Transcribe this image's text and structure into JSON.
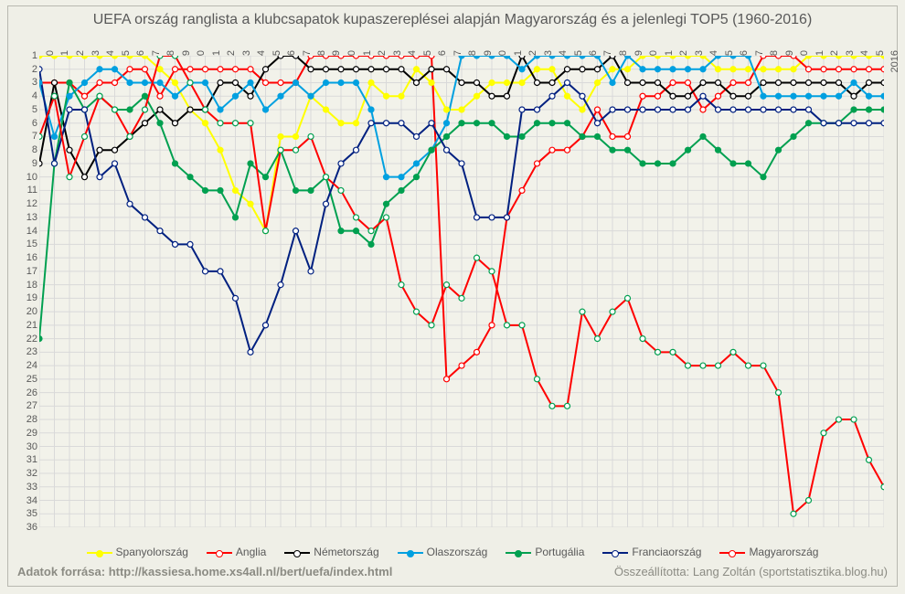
{
  "title": "UEFA ország ranglista a klubcsapatok kupaszereplései alapján Magyarország és a jelenlegi TOP5 (1960-2016)",
  "footer_left": "Adatok forrása: http://kassiesa.home.xs4all.nl/bert/uefa/index.html",
  "footer_right": "Összeállította: Lang Zoltán (sportstatisztika.blog.hu)",
  "background": "#f2f2ea",
  "outer_background": "#efefe7",
  "grid_color": "#d9d9d9",
  "title_fontsize": 16,
  "label_fontsize": 11,
  "years": [
    1960,
    1961,
    1962,
    1963,
    1964,
    1965,
    1966,
    1967,
    1968,
    1969,
    1970,
    1971,
    1972,
    1973,
    1974,
    1975,
    1976,
    1977,
    1978,
    1979,
    1980,
    1981,
    1982,
    1983,
    1984,
    1985,
    1986,
    1987,
    1988,
    1989,
    1990,
    1991,
    1992,
    1993,
    1994,
    1995,
    1996,
    1997,
    1998,
    1999,
    2000,
    2001,
    2002,
    2003,
    2004,
    2005,
    2006,
    2007,
    2008,
    2009,
    2010,
    2011,
    2012,
    2013,
    2014,
    2015,
    2016
  ],
  "ylim": [
    1,
    36
  ],
  "series": [
    {
      "id": "esp",
      "label": "Spanyolország",
      "color": "#ffff00",
      "marker_fill": "solid",
      "values": [
        1,
        1,
        1,
        1,
        1,
        1,
        1,
        1,
        2,
        3,
        5,
        6,
        8,
        11,
        12,
        14,
        7,
        7,
        4,
        5,
        6,
        6,
        3,
        4,
        4,
        2,
        3,
        5,
        5,
        4,
        3,
        3,
        3,
        2,
        2,
        4,
        5,
        3,
        2,
        2,
        1,
        1,
        1,
        1,
        1,
        2,
        2,
        2,
        2,
        2,
        2,
        1,
        1,
        1,
        1,
        1,
        1
      ]
    },
    {
      "id": "eng",
      "label": "Anglia",
      "color": "#ff0000",
      "marker_fill": "hollow",
      "values": [
        3,
        3,
        3,
        4,
        3,
        3,
        2,
        2,
        4,
        2,
        2,
        2,
        2,
        2,
        2,
        3,
        3,
        3,
        1,
        1,
        1,
        1,
        1,
        1,
        1,
        1,
        1,
        25,
        24,
        23,
        21,
        13,
        11,
        9,
        8,
        8,
        7,
        5,
        7,
        7,
        4,
        4,
        3,
        3,
        5,
        4,
        3,
        3,
        1,
        1,
        1,
        2,
        2,
        2,
        2,
        2,
        2
      ]
    },
    {
      "id": "ger",
      "label": "Németország",
      "color": "#000000",
      "marker_fill": "hollow",
      "values": [
        9,
        3,
        8,
        10,
        8,
        8,
        7,
        6,
        5,
        6,
        5,
        5,
        3,
        3,
        4,
        2,
        1,
        1,
        2,
        2,
        2,
        2,
        2,
        2,
        2,
        3,
        2,
        2,
        3,
        3,
        4,
        4,
        1,
        3,
        3,
        2,
        2,
        2,
        1,
        3,
        3,
        3,
        4,
        4,
        3,
        3,
        4,
        4,
        3,
        3,
        3,
        3,
        3,
        3,
        4,
        3,
        3
      ]
    },
    {
      "id": "ita",
      "label": "Olaszország",
      "color": "#00a0e0",
      "marker_fill": "solid",
      "values": [
        3,
        7,
        4,
        3,
        2,
        2,
        3,
        3,
        3,
        4,
        3,
        3,
        5,
        4,
        3,
        5,
        4,
        3,
        4,
        3,
        3,
        3,
        5,
        10,
        10,
        9,
        8,
        6,
        1,
        1,
        1,
        1,
        2,
        1,
        1,
        1,
        1,
        1,
        3,
        1,
        2,
        2,
        2,
        2,
        2,
        1,
        1,
        1,
        4,
        4,
        4,
        4,
        4,
        4,
        3,
        4,
        4
      ]
    },
    {
      "id": "por",
      "label": "Portugália",
      "color": "#00a050",
      "marker_fill": "solid",
      "values": [
        22,
        9,
        3,
        5,
        4,
        5,
        5,
        4,
        6,
        9,
        10,
        11,
        11,
        13,
        9,
        10,
        8,
        11,
        11,
        10,
        14,
        14,
        15,
        12,
        11,
        10,
        8,
        7,
        6,
        6,
        6,
        7,
        7,
        6,
        6,
        6,
        7,
        7,
        8,
        8,
        9,
        9,
        9,
        8,
        7,
        8,
        9,
        9,
        10,
        8,
        7,
        6,
        6,
        6,
        5,
        5,
        5
      ]
    },
    {
      "id": "fra",
      "label": "Franciaország",
      "color": "#002080",
      "marker_fill": "hollow",
      "values": [
        2,
        9,
        5,
        5,
        10,
        9,
        12,
        13,
        14,
        15,
        15,
        17,
        17,
        19,
        23,
        21,
        18,
        14,
        17,
        12,
        9,
        8,
        6,
        6,
        6,
        7,
        6,
        8,
        9,
        13,
        13,
        13,
        5,
        5,
        4,
        3,
        4,
        6,
        5,
        5,
        5,
        5,
        5,
        5,
        4,
        5,
        5,
        5,
        5,
        5,
        5,
        5,
        6,
        6,
        6,
        6,
        6
      ]
    },
    {
      "id": "hun",
      "label": "Magyarország",
      "color": "#ff0000",
      "marker_fill": "hollow_green",
      "values": [
        7,
        4,
        10,
        7,
        4,
        5,
        7,
        5,
        1,
        1,
        3,
        5,
        6,
        6,
        6,
        14,
        8,
        8,
        7,
        10,
        11,
        13,
        14,
        13,
        18,
        20,
        21,
        18,
        19,
        16,
        17,
        21,
        21,
        25,
        27,
        27,
        20,
        22,
        20,
        19,
        22,
        23,
        23,
        24,
        24,
        24,
        23,
        24,
        24,
        26,
        35,
        34,
        29,
        28,
        28,
        31,
        33
      ]
    }
  ],
  "legend_labels": {
    "esp": "Spanyolország",
    "eng": "Anglia",
    "ger": "Németország",
    "ita": "Olaszország",
    "por": "Portugália",
    "fra": "Franciaország",
    "hun": "Magyarország"
  }
}
